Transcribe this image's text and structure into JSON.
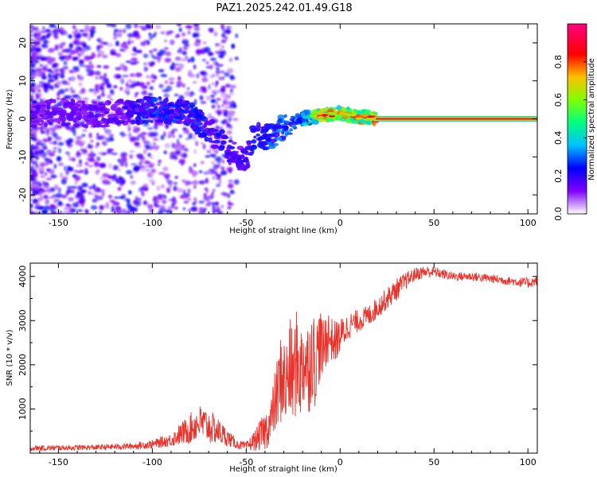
{
  "title": "PAZ1.2025.242.01.49.G18",
  "chart_data": [
    {
      "id": "spectrogram",
      "type": "heatmap",
      "xlabel": "Height of straight line (km)",
      "ylabel": "Frequency (Hz)",
      "xlim": [
        -165,
        105
      ],
      "ylim": [
        -25,
        25
      ],
      "xticks": [
        -150,
        -100,
        -50,
        0,
        50,
        100
      ],
      "xtick_labels": [
        "-150",
        "-100",
        "-50",
        "0",
        "50",
        "100"
      ],
      "yticks": [
        -20,
        -10,
        0,
        10,
        20
      ],
      "ytick_labels": [
        "-20",
        "-10",
        "0",
        "10",
        "20"
      ],
      "colorbar": {
        "label": "Normalized spectral amplitude",
        "range": [
          0.0,
          1.0
        ],
        "ticks": [
          0.0,
          0.2,
          0.4,
          0.6,
          0.8
        ],
        "tick_labels": [
          "0.0",
          "0.2",
          "0.4",
          "0.6",
          "0.8"
        ],
        "colors": [
          "#ffffff",
          "#8000ff",
          "#0000ff",
          "#00c0ff",
          "#00ff80",
          "#80ff00",
          "#ffc000",
          "#ff0000",
          "#ff0080"
        ]
      },
      "ridge": {
        "x": [
          -165,
          -150,
          -140,
          -130,
          -120,
          -110,
          -100,
          -90,
          -85,
          -80,
          -75,
          -70,
          -65,
          -60,
          -55,
          -50,
          -45,
          -40,
          -35,
          -30,
          -25,
          -20,
          -15,
          -10,
          -5,
          0,
          5,
          10,
          15,
          20,
          30,
          50,
          80,
          105
        ],
        "freq": [
          1,
          2,
          1.5,
          1,
          1.5,
          2,
          2.5,
          2,
          2,
          1,
          -1,
          -3,
          -5,
          -8,
          -10,
          -11,
          -3,
          -5,
          -4,
          -2,
          -1,
          0,
          0.5,
          1,
          1,
          1.5,
          1,
          0.5,
          0.5,
          0,
          0,
          0,
          0,
          0
        ],
        "amplitude": [
          0.15,
          0.15,
          0.15,
          0.15,
          0.15,
          0.2,
          0.25,
          0.25,
          0.25,
          0.25,
          0.25,
          0.2,
          0.2,
          0.2,
          0.2,
          0.2,
          0.25,
          0.25,
          0.3,
          0.3,
          0.3,
          0.35,
          0.45,
          0.7,
          0.75,
          0.6,
          0.75,
          0.7,
          0.6,
          0.95,
          0.95,
          0.95,
          0.95,
          0.95
        ]
      }
    },
    {
      "id": "snr",
      "type": "line",
      "xlabel": "Height of straight line (km)",
      "ylabel": "SNR (10 * v/v)",
      "xlim": [
        -165,
        105
      ],
      "ylim": [
        0,
        4300
      ],
      "xticks": [
        -150,
        -100,
        -50,
        0,
        50,
        100
      ],
      "xtick_labels": [
        "-150",
        "-100",
        "-50",
        "0",
        "50",
        "100"
      ],
      "yticks": [
        1000,
        2000,
        3000,
        4000
      ],
      "ytick_labels": [
        "1000",
        "2000",
        "3000",
        "4000"
      ],
      "series": [
        {
          "name": "SNR",
          "color": "#e8322a",
          "x": [
            -165,
            -150,
            -130,
            -110,
            -100,
            -90,
            -80,
            -75,
            -70,
            -65,
            -60,
            -55,
            -50,
            -45,
            -40,
            -37,
            -35,
            -33,
            -31,
            -29,
            -27,
            -25,
            -23,
            -21,
            -19,
            -17,
            -15,
            -13,
            -11,
            -9,
            -7,
            -5,
            -3,
            0,
            5,
            10,
            15,
            20,
            25,
            30,
            35,
            40,
            45,
            50,
            60,
            70,
            80,
            90,
            100,
            105
          ],
          "y": [
            110,
            120,
            130,
            160,
            200,
            300,
            550,
            700,
            600,
            500,
            350,
            200,
            150,
            300,
            500,
            700,
            1100,
            1400,
            1800,
            1500,
            1900,
            1700,
            2100,
            1800,
            2200,
            1900,
            2300,
            2000,
            2500,
            2300,
            2700,
            2600,
            2500,
            2650,
            2900,
            3000,
            3100,
            3300,
            3500,
            3700,
            3900,
            4050,
            4100,
            4100,
            4000,
            4000,
            3950,
            3900,
            3850,
            3900
          ],
          "noise": [
            60,
            60,
            60,
            70,
            100,
            150,
            350,
            400,
            400,
            300,
            200,
            100,
            100,
            250,
            450,
            500,
            700,
            900,
            1100,
            1000,
            1200,
            1100,
            1200,
            1100,
            1200,
            1100,
            1100,
            1000,
            900,
            700,
            700,
            500,
            500,
            400,
            300,
            250,
            250,
            250,
            250,
            250,
            200,
            150,
            150,
            120,
            100,
            100,
            100,
            100,
            120,
            120
          ]
        }
      ]
    }
  ]
}
